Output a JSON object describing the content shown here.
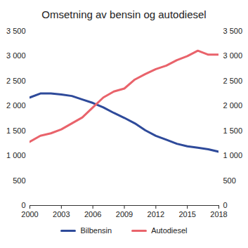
{
  "chart_data": {
    "type": "line",
    "title": "Omsetning av bensin og autodiesel",
    "x": [
      2000,
      2001,
      2002,
      2003,
      2004,
      2005,
      2006,
      2007,
      2008,
      2009,
      2010,
      2011,
      2012,
      2013,
      2014,
      2015,
      2016,
      2017,
      2018
    ],
    "series": [
      {
        "name": "Bilbensin",
        "color": "#2e4a9a",
        "values": [
          2170,
          2250,
          2250,
          2230,
          2200,
          2130,
          2060,
          1970,
          1860,
          1760,
          1650,
          1510,
          1400,
          1320,
          1240,
          1190,
          1160,
          1130,
          1080
        ]
      },
      {
        "name": "Autodiesel",
        "color": "#e9636b",
        "values": [
          1280,
          1400,
          1450,
          1530,
          1650,
          1770,
          1970,
          2170,
          2290,
          2350,
          2530,
          2640,
          2740,
          2810,
          2920,
          3000,
          3110,
          3030,
          3030
        ]
      }
    ],
    "xlim": [
      2000,
      2018
    ],
    "xticks": [
      2000,
      2003,
      2006,
      2009,
      2012,
      2015,
      2018
    ],
    "ylim": [
      0,
      3500
    ],
    "yticks": [
      0,
      500,
      {
        "value": 1000,
        "label": "1 000"
      },
      {
        "value": 1500,
        "label": "1 500"
      },
      {
        "value": 2000,
        "label": "2 000"
      },
      {
        "value": 2500,
        "label": "2 500"
      },
      {
        "value": 3000,
        "label": "3 000"
      },
      {
        "value": 3500,
        "label": "3 500"
      }
    ],
    "grid": false,
    "legend": "bottom"
  }
}
